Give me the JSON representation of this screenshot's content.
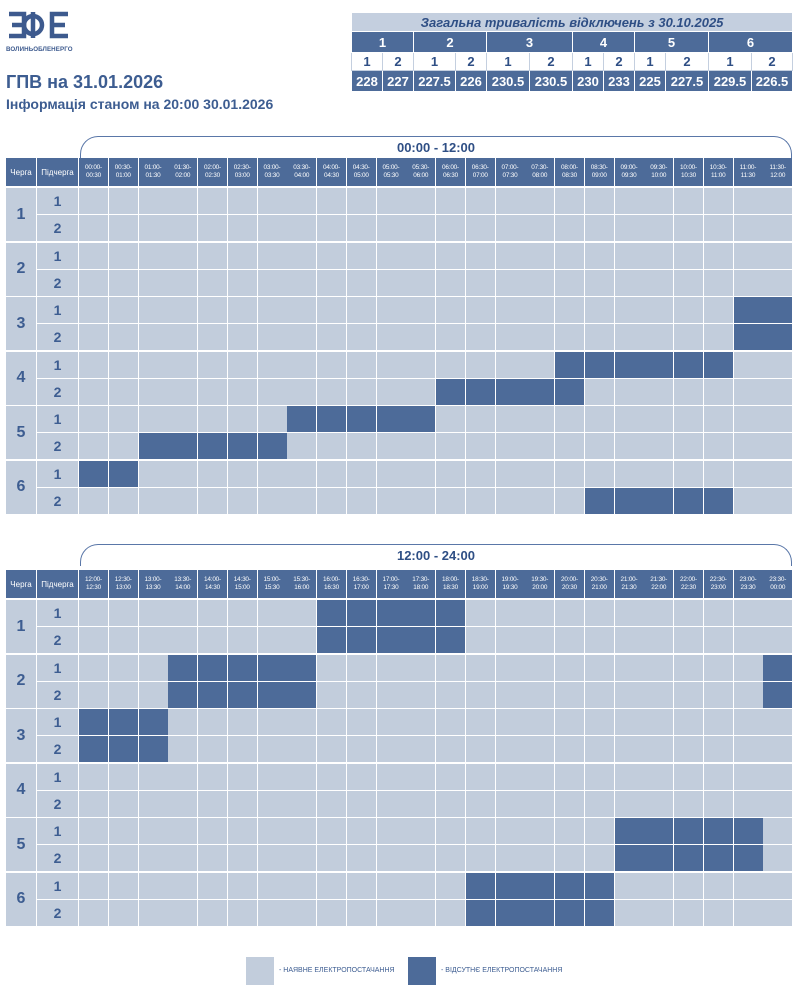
{
  "header": {
    "logo_text": "ВОЛИНЬОБЛЕНЕРГО",
    "title": "ГПВ на 31.01.2026",
    "subtitle": "Інформація станом на 20:00 30.01.2026"
  },
  "summary": {
    "title": "Загальна тривалість відключень з 30.10.2025",
    "groups": [
      {
        "label": "1",
        "subs": [
          {
            "label": "1",
            "value": "228"
          },
          {
            "label": "2",
            "value": "227"
          }
        ]
      },
      {
        "label": "2",
        "subs": [
          {
            "label": "1",
            "value": "227.5"
          },
          {
            "label": "2",
            "value": "226"
          }
        ]
      },
      {
        "label": "3",
        "subs": [
          {
            "label": "1",
            "value": "230.5"
          },
          {
            "label": "2",
            "value": "230.5"
          }
        ]
      },
      {
        "label": "4",
        "subs": [
          {
            "label": "1",
            "value": "230"
          },
          {
            "label": "2",
            "value": "233"
          }
        ]
      },
      {
        "label": "5",
        "subs": [
          {
            "label": "1",
            "value": "225"
          },
          {
            "label": "2",
            "value": "227.5"
          }
        ]
      },
      {
        "label": "6",
        "subs": [
          {
            "label": "1",
            "value": "229.5"
          },
          {
            "label": "2",
            "value": "226.5"
          }
        ]
      }
    ]
  },
  "columns": {
    "queue": "Черга",
    "subqueue": "Підчерга"
  },
  "queues": [
    "1",
    "2",
    "3",
    "4",
    "5",
    "6"
  ],
  "subqueues": [
    "1",
    "2"
  ],
  "colors": {
    "available": "#c2cddc",
    "outage": "#4d6b99"
  },
  "tables": [
    {
      "range": "00:00 - 12:00",
      "slots": [
        "00:00-00:30",
        "00:30-01:00",
        "01:00-01:30",
        "01:30-02:00",
        "02:00-02:30",
        "02:30-03:00",
        "03:00-03:30",
        "03:30-04:00",
        "04:00-04:30",
        "04:30-05:00",
        "05:00-05:30",
        "05:30-06:00",
        "06:00-06:30",
        "06:30-07:00",
        "07:00-07:30",
        "07:30-08:00",
        "08:00-08:30",
        "08:30-09:00",
        "09:00-09:30",
        "09:30-10:00",
        "10:00-10:30",
        "10:30-11:00",
        "11:00-11:30",
        "11:30-12:00"
      ],
      "outages": {
        "1.1": [],
        "1.2": [],
        "2.1": [],
        "2.2": [],
        "3.1": [
          22,
          23
        ],
        "3.2": [
          22,
          23
        ],
        "4.1": [
          16,
          17,
          18,
          19,
          20,
          21
        ],
        "4.2": [
          12,
          13,
          14,
          15,
          16
        ],
        "5.1": [
          7,
          8,
          9,
          10,
          11
        ],
        "5.2": [
          2,
          3,
          4,
          5,
          6
        ],
        "6.1": [
          0,
          1
        ],
        "6.2": [
          17,
          18,
          19,
          20,
          21
        ]
      }
    },
    {
      "range": "12:00 - 24:00",
      "slots": [
        "12:00-12:30",
        "12:30-13:00",
        "13:00-13:30",
        "13:30-14:00",
        "14:00-14:30",
        "14:30-15:00",
        "15:00-15:30",
        "15:30-16:00",
        "16:00-16:30",
        "16:30-17:00",
        "17:00-17:30",
        "17:30-18:00",
        "18:00-18:30",
        "18:30-19:00",
        "19:00-19:30",
        "19:30-20:00",
        "20:00-20:30",
        "20:30-21:00",
        "21:00-21:30",
        "21:30-22:00",
        "22:00-22:30",
        "22:30-23:00",
        "23:00-23:30",
        "23:30-00:00"
      ],
      "outages": {
        "1.1": [
          8,
          9,
          10,
          11,
          12
        ],
        "1.2": [
          8,
          9,
          10,
          11,
          12
        ],
        "2.1": [
          3,
          4,
          5,
          6,
          7,
          23
        ],
        "2.2": [
          3,
          4,
          5,
          6,
          7,
          23
        ],
        "3.1": [
          0,
          1,
          2
        ],
        "3.2": [
          0,
          1,
          2
        ],
        "4.1": [],
        "4.2": [],
        "5.1": [
          18,
          19,
          20,
          21,
          22
        ],
        "5.2": [
          18,
          19,
          20,
          21,
          22
        ],
        "6.1": [
          13,
          14,
          15,
          16,
          17
        ],
        "6.2": [
          13,
          14,
          15,
          16,
          17
        ]
      }
    }
  ],
  "legend": {
    "available": "- НАЯВНЕ ЕЛЕКТРОПОСТАЧАННЯ",
    "outage": "- ВІДСУТНЄ ЕЛЕКТРОПОСТАЧАННЯ"
  }
}
